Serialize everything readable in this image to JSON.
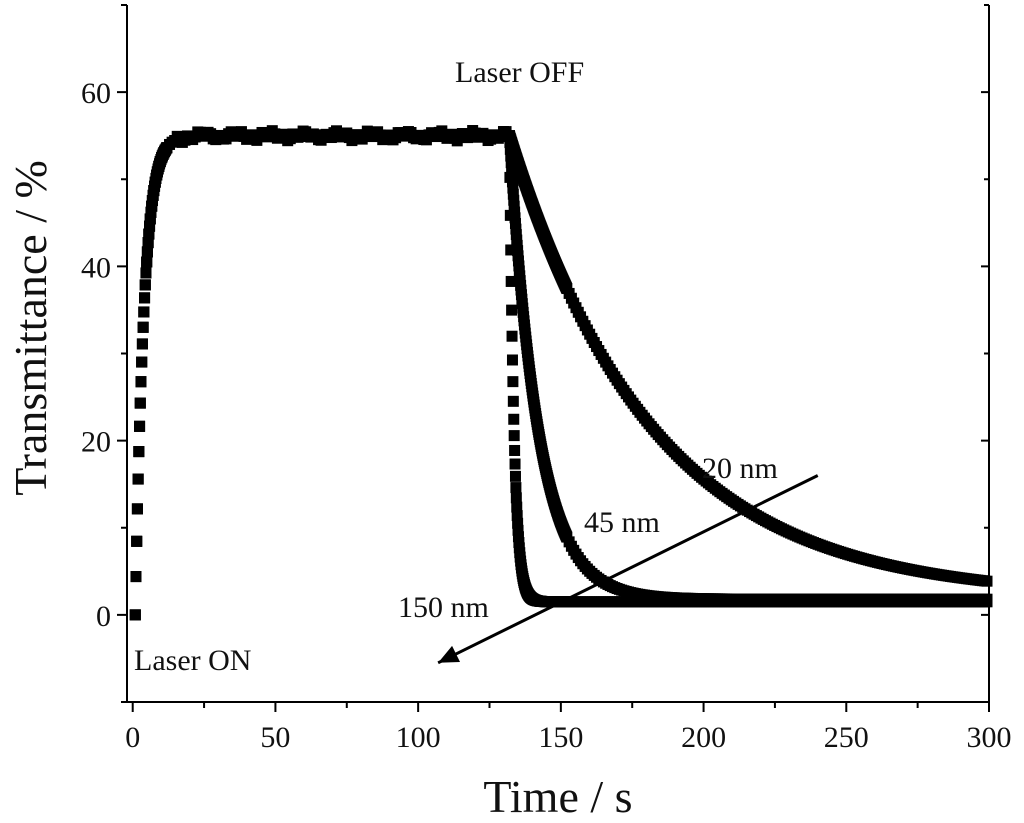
{
  "chart_data": {
    "type": "scatter",
    "xlabel": "Time / s",
    "ylabel": "Transmittance / %",
    "xlim": [
      -2,
      300
    ],
    "ylim": [
      -10,
      70
    ],
    "xticks": [
      0,
      50,
      100,
      150,
      200,
      250,
      300
    ],
    "yticks": [
      0,
      20,
      40,
      60
    ],
    "grid": false,
    "annotations": {
      "laser_off": "Laser OFF",
      "laser_on": "Laser ON",
      "label_20nm": "20 nm",
      "label_45nm": "45 nm",
      "label_150nm": "150 nm"
    },
    "series": [
      {
        "name": "20 nm",
        "laser_on_s": 0.9,
        "rise_tau_s": 3,
        "plateau": 55,
        "off_time_s": 132,
        "decay_tau_s": 50,
        "baseline": 2
      },
      {
        "name": "45 nm",
        "laser_on_s": 0.9,
        "rise_tau_s": 3,
        "plateau": 55,
        "off_time_s": 132,
        "decay_tau_s": 10,
        "baseline": 1.8
      },
      {
        "name": "150 nm",
        "laser_on_s": 0.9,
        "rise_tau_s": 3,
        "plateau": 55,
        "off_time_s": 132,
        "decay_tau_s": 1.6,
        "baseline": 1.5
      }
    ],
    "trend_arrow": {
      "from": [
        240,
        16
      ],
      "to": [
        107,
        -5.5
      ]
    }
  }
}
